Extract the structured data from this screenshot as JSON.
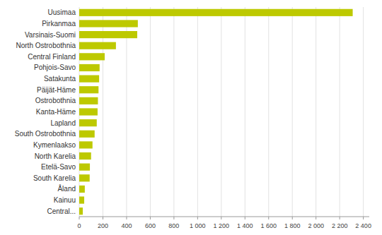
{
  "chart_data": {
    "type": "bar",
    "orientation": "horizontal",
    "categories": [
      "Central...",
      "Kainuu",
      "Åland",
      "South Karelia",
      "Etelä-Savo",
      "North Karelia",
      "Kymenlaakso",
      "South Ostrobothnia",
      "Lapland",
      "Kanta-Häme",
      "Ostrobothnia",
      "Päijät-Häme",
      "Satakunta",
      "Pohjois-Savo",
      "Central Finland",
      "North Ostrobothnia",
      "Varsinais-Suomi",
      "Pirkanmaa",
      "Uusimaa"
    ],
    "values": [
      30,
      42,
      47,
      88,
      90,
      100,
      112,
      130,
      148,
      155,
      158,
      163,
      168,
      172,
      215,
      310,
      490,
      495,
      2310
    ],
    "color": "#bdc900",
    "xlim": [
      0,
      2450
    ],
    "xticks": [
      0,
      200,
      400,
      600,
      800,
      {
        "value": 1000,
        "label": "1 000"
      },
      {
        "value": 1200,
        "label": "1 200"
      },
      {
        "value": 1400,
        "label": "1 400"
      },
      {
        "value": 1600,
        "label": "1 600"
      },
      {
        "value": 1800,
        "label": "1 800"
      },
      {
        "value": 2000,
        "label": "2 000"
      },
      {
        "value": 2200,
        "label": "2 200"
      },
      {
        "value": 2400,
        "label": "2 400"
      }
    ],
    "grid": true
  }
}
